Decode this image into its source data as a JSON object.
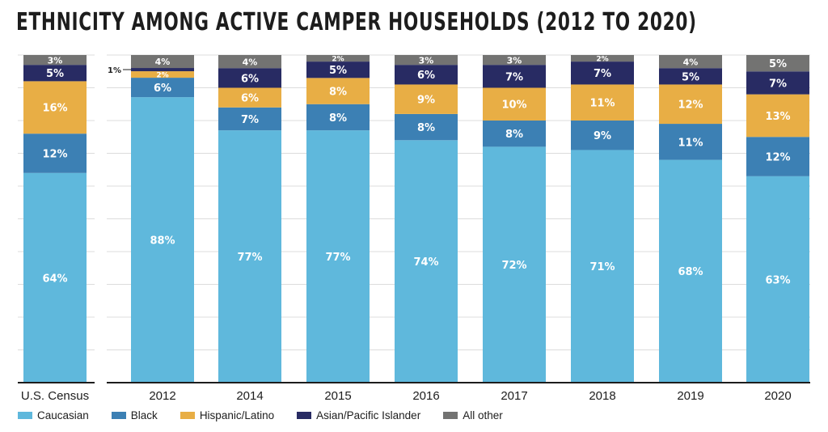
{
  "chart_data": {
    "type": "bar",
    "stacked": true,
    "title": "ETHNICITY AMONG ACTIVE CAMPER HOUSEHOLDS (2012 TO 2020)",
    "xlabel": "",
    "ylabel": "",
    "ylim": [
      0,
      100
    ],
    "grid": true,
    "legend_position": "bottom-left",
    "categories": [
      "U.S. Census",
      "2012",
      "2014",
      "2015",
      "2016",
      "2017",
      "2018",
      "2019",
      "2020"
    ],
    "series": [
      {
        "name": "Caucasian",
        "color": "#5fb8dc",
        "values": [
          64,
          88,
          77,
          77,
          74,
          72,
          71,
          68,
          63
        ],
        "labels": [
          "64%",
          "88%",
          "77%",
          "77%",
          "74%",
          "72%",
          "71%",
          "68%",
          "63%"
        ]
      },
      {
        "name": "Black",
        "color": "#3c80b4",
        "values": [
          12,
          6,
          7,
          8,
          8,
          8,
          9,
          11,
          12
        ],
        "labels": [
          "12%",
          "6%",
          "7%",
          "8%",
          "8%",
          "8%",
          "9%",
          "11%",
          "12%"
        ]
      },
      {
        "name": "Hispanic/Latino",
        "color": "#e8ae45",
        "values": [
          16,
          2,
          6,
          8,
          9,
          10,
          11,
          12,
          13
        ],
        "labels": [
          "16%",
          "2%",
          "6%",
          "8%",
          "9%",
          "10%",
          "11%",
          "12%",
          "13%"
        ]
      },
      {
        "name": "Asian/Pacific Islander",
        "color": "#282b63",
        "values": [
          5,
          1,
          6,
          5,
          6,
          7,
          7,
          5,
          7
        ],
        "labels": [
          "5%",
          "1%",
          "6%",
          "5%",
          "6%",
          "7%",
          "7%",
          "5%",
          "7%"
        ]
      },
      {
        "name": "All other",
        "color": "#737372",
        "values": [
          3,
          4,
          4,
          2,
          3,
          3,
          2,
          4,
          5
        ],
        "labels": [
          "3%",
          "4%",
          "4%",
          "2%",
          "3%",
          "3%",
          "2%",
          "4%",
          "5%"
        ]
      }
    ],
    "annotations": [
      {
        "category": "2012",
        "series": "Asian/Pacific Islander",
        "text": "1%",
        "placement": "left-callout"
      }
    ]
  }
}
